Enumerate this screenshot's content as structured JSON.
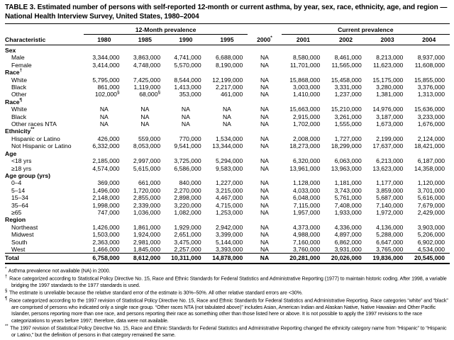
{
  "title": "TABLE 3. Estimated number of persons with self-reported 12-month or current asthma, by year, sex, race, ethnicity, age, and region — National Health Interview Survey, United States, 1980–2004",
  "table": {
    "char_header": "Characteristic",
    "spanners": [
      {
        "label": "12-Month prevalence"
      },
      {
        "label": "Current prevalence"
      }
    ],
    "year_headers": [
      {
        "label": "1980",
        "sup": ""
      },
      {
        "label": "1985",
        "sup": ""
      },
      {
        "label": "1990",
        "sup": ""
      },
      {
        "label": "1995",
        "sup": ""
      },
      {
        "label": "2000",
        "sup": "*"
      },
      {
        "label": "2001",
        "sup": ""
      },
      {
        "label": "2002",
        "sup": ""
      },
      {
        "label": "2003",
        "sup": ""
      },
      {
        "label": "2004",
        "sup": ""
      }
    ],
    "sections": [
      {
        "header": "Sex",
        "sup": "",
        "rows": [
          {
            "label": "Male",
            "cells": [
              "3,344,000",
              "3,863,000",
              "4,741,000",
              "6,688,000",
              "NA",
              "8,580,000",
              "8,461,000",
              "8,213,000",
              "8,937,000"
            ]
          },
          {
            "label": "Female",
            "cells": [
              "3,414,000",
              "4,748,000",
              "5,570,000",
              "8,190,000",
              "NA",
              "11,701,000",
              "11,565,000",
              "11,623,000",
              "11,608,000"
            ]
          }
        ]
      },
      {
        "header": "Race",
        "sup": "†",
        "rows": [
          {
            "label": "White",
            "cells": [
              "5,795,000",
              "7,425,000",
              "8,544,000",
              "12,199,000",
              "NA",
              "15,868,000",
              "15,458,000",
              "15,175,000",
              "15,855,000"
            ]
          },
          {
            "label": "Black",
            "cells": [
              "861,000",
              "1,119,000",
              "1,413,000",
              "2,217,000",
              "NA",
              "3,003,000",
              "3,331,000",
              "3,280,000",
              "3,376,000"
            ]
          },
          {
            "label": "Other",
            "cells": [
              {
                "v": "102,000",
                "sup": "§"
              },
              {
                "v": "68,000",
                "sup": "§"
              },
              "353,000",
              "461,000",
              "NA",
              "1,410,000",
              "1,237,000",
              "1,381,000",
              "1,313,000"
            ]
          }
        ]
      },
      {
        "header": "Race",
        "sup": "¶",
        "rows": [
          {
            "label": "White",
            "cells": [
              "NA",
              "NA",
              "NA",
              "NA",
              "NA",
              "15,663,000",
              "15,210,000",
              "14,976,000",
              "15,636,000"
            ]
          },
          {
            "label": "Black",
            "cells": [
              "NA",
              "NA",
              "NA",
              "NA",
              "NA",
              "2,915,000",
              "3,261,000",
              "3,187,000",
              "3,233,000"
            ]
          },
          {
            "label": "Other races NTA",
            "cells": [
              "NA",
              "NA",
              "NA",
              "NA",
              "NA",
              "1,702,000",
              "1,555,000",
              "1,673,000",
              "1,676,000"
            ]
          }
        ]
      },
      {
        "header": "Ethnicity",
        "sup": "**",
        "rows": [
          {
            "label": "Hispanic or Latino",
            "cells": [
              "426,000",
              "559,000",
              "770,000",
              "1,534,000",
              "NA",
              "2,008,000",
              "1,727,000",
              "2,199,000",
              "2,124,000"
            ]
          },
          {
            "label": "Not Hispanic or Latino",
            "cells": [
              "6,332,000",
              "8,053,000",
              "9,541,000",
              "13,344,000",
              "NA",
              "18,273,000",
              "18,299,000",
              "17,637,000",
              "18,421,000"
            ]
          }
        ]
      },
      {
        "header": "Age",
        "sup": "",
        "rows": [
          {
            "label": "<18 yrs",
            "cells": [
              "2,185,000",
              "2,997,000",
              "3,725,000",
              "5,294,000",
              "NA",
              "6,320,000",
              "6,063,000",
              "6,213,000",
              "6,187,000"
            ]
          },
          {
            "label": "≥18 yrs",
            "cells": [
              "4,574,000",
              "5,615,000",
              "6,586,000",
              "9,583,000",
              "NA",
              "13,961,000",
              "13,963,000",
              "13,623,000",
              "14,358,000"
            ]
          }
        ]
      },
      {
        "header": "Age group (yrs)",
        "sup": "",
        "rows": [
          {
            "label": "0–4",
            "cells": [
              "369,000",
              "661,000",
              "840,000",
              "1,227,000",
              "NA",
              "1,128,000",
              "1,181,000",
              "1,177,000",
              "1,120,000"
            ]
          },
          {
            "label": "5–14",
            "cells": [
              "1,496,000",
              "1,720,000",
              "2,270,000",
              "3,215,000",
              "NA",
              "4,033,000",
              "3,743,000",
              "3,859,000",
              "3,701,000"
            ]
          },
          {
            "label": "15–34",
            "cells": [
              "2,148,000",
              "2,855,000",
              "2,898,000",
              "4,467,000",
              "NA",
              "6,048,000",
              "5,761,000",
              "5,687,000",
              "5,616,000"
            ]
          },
          {
            "label": "35–64",
            "cells": [
              "1,998,000",
              "2,339,000",
              "3,220,000",
              "4,715,000",
              "NA",
              "7,115,000",
              "7,408,000",
              "7,140,000",
              "7,679,000"
            ]
          },
          {
            "label": "≥65",
            "cells": [
              "747,000",
              "1,036,000",
              "1,082,000",
              "1,253,000",
              "NA",
              "1,957,000",
              "1,933,000",
              "1,972,000",
              "2,429,000"
            ]
          }
        ]
      },
      {
        "header": "Region",
        "sup": "",
        "rows": [
          {
            "label": "Northeast",
            "cells": [
              "1,426,000",
              "1,861,000",
              "1,929,000",
              "2,942,000",
              "NA",
              "4,373,000",
              "4,336,000",
              "4,136,000",
              "3,903,000"
            ]
          },
          {
            "label": "Midwest",
            "cells": [
              "1,503,000",
              "1,924,000",
              "2,651,000",
              "3,399,000",
              "NA",
              "4,988,000",
              "4,897,000",
              "5,288,000",
              "5,206,000"
            ]
          },
          {
            "label": "South",
            "cells": [
              "2,363,000",
              "2,981,000",
              "3,475,000",
              "5,144,000",
              "NA",
              "7,160,000",
              "6,862,000",
              "6,647,000",
              "6,902,000"
            ]
          },
          {
            "label": "West",
            "cells": [
              "1,466,000",
              "1,845,000",
              "2,257,000",
              "3,393,000",
              "NA",
              "3,760,000",
              "3,931,000",
              "3,765,000",
              "4,534,000"
            ]
          }
        ]
      }
    ],
    "total_row": {
      "label": "Total",
      "cells": [
        "6,758,000",
        "8,612,000",
        "10,311,000",
        "14,878,000",
        "NA",
        "20,281,000",
        "20,026,000",
        "19,836,000",
        "20,545,000"
      ]
    }
  },
  "footnotes": [
    {
      "sym": "*",
      "text": "Asthma prevalence not available (NA) in 2000."
    },
    {
      "sym": "†",
      "text": "Race categorized according to Statistical Policy Directive No. 15, Race and Ethnic Standards for Federal Statistics and Administrative Reporting (1977) to maintain historic coding. After 1998, a variable bridging the 1997 standards to the 1977 standards is used."
    },
    {
      "sym": "§",
      "text": "The estimate is unreliable because the relative standard error of the estimate is 30%–50%. All other relative standard errors are <30%."
    },
    {
      "sym": "¶",
      "text": "Race categorized according to the 1997 revision of Statistical Policy Directive No. 15, Race and Ethnic Standards for Federal Statistics and Administrative Reporting. Race categories “white” and “black” are comprised of persons who indicated only a single race group. “Other races NTA (not tabulated above)” includes Asian, American Indian and Alaskan Native, Native Hawaiian and Other Pacific Islander, persons reporting more than one race, and persons reporting their race as something other than those listed here or above. It is not possible to apply the 1997 revisions to the race categorizations to years before 1997; therefore, data were not available."
    },
    {
      "sym": "**",
      "text": "The 1997 revision of Statistical Policy Directive No. 15, Race and Ethnic Standards for Federal Statistics and Administrative Reporting changed the ethnicity category name from “Hispanic” to “Hispanic or Latino,” but the definition of persons in that category remained the same."
    }
  ]
}
